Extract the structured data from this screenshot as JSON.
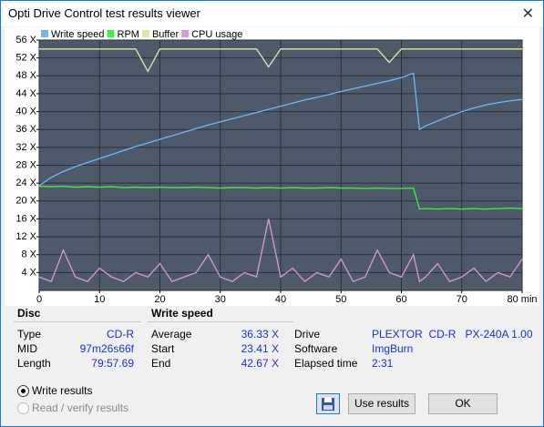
{
  "window": {
    "title": "Opti Drive Control test results viewer"
  },
  "chart_data": {
    "type": "line",
    "x": [
      0,
      2,
      4,
      6,
      8,
      10,
      12,
      14,
      16,
      18,
      20,
      22,
      24,
      26,
      28,
      30,
      32,
      34,
      36,
      38,
      40,
      42,
      44,
      46,
      48,
      50,
      52,
      54,
      56,
      58,
      60,
      62,
      63,
      64,
      66,
      68,
      70,
      72,
      74,
      76,
      78,
      80
    ],
    "series": [
      {
        "name": "Write speed",
        "color": "#6fb8f2",
        "values": [
          23.4,
          25.3,
          26.6,
          27.7,
          28.6,
          29.5,
          30.4,
          31.3,
          32.2,
          33,
          33.8,
          34.6,
          35.4,
          36.2,
          37,
          37.7,
          38.4,
          39.1,
          39.8,
          40.5,
          41.2,
          41.9,
          42.6,
          43.2,
          43.8,
          44.5,
          45.1,
          45.7,
          46.3,
          46.9,
          47.6,
          48.6,
          36,
          36.8,
          37.9,
          39,
          40,
          40.8,
          41.5,
          42,
          42.4,
          42.7
        ]
      },
      {
        "name": "RPM",
        "color": "#40f040",
        "values": [
          23.3,
          23.2,
          23.3,
          23.1,
          23.2,
          23.1,
          23.2,
          23,
          23.1,
          23,
          23.1,
          23,
          23,
          23.1,
          23,
          22.9,
          23,
          23,
          22.9,
          23,
          22.9,
          23,
          22.9,
          22.9,
          23,
          22.9,
          22.9,
          22.8,
          22.9,
          22.8,
          22.8,
          22.9,
          18.2,
          18.3,
          18.2,
          18.3,
          18.2,
          18.3,
          18.2,
          18.3,
          18.4,
          18.3
        ]
      },
      {
        "name": "Buffer",
        "color": "#e4e4a8",
        "values": [
          54,
          54,
          54,
          54,
          54,
          54,
          54,
          54,
          54,
          49,
          54,
          54,
          54,
          54,
          54,
          54,
          54,
          54,
          54,
          50,
          54,
          54,
          54,
          54,
          54,
          54,
          54,
          54,
          54,
          51,
          54,
          54,
          54,
          54,
          54,
          54,
          54,
          54,
          54,
          54,
          54,
          54
        ]
      },
      {
        "name": "CPU usage",
        "color": "#d79ad7",
        "values": [
          3,
          2,
          9,
          3,
          2,
          5,
          3,
          2,
          4,
          3,
          6,
          2,
          3,
          4,
          8,
          3,
          2,
          4,
          3,
          16,
          3,
          5,
          2,
          4,
          3,
          7,
          2,
          3,
          9,
          4,
          3,
          8,
          2,
          3,
          6,
          2,
          3,
          5,
          2,
          4,
          3,
          7
        ]
      }
    ],
    "xlim": [
      0,
      80
    ],
    "xticks": [
      0,
      10,
      20,
      30,
      40,
      50,
      60,
      70,
      {
        "value": 80,
        "label": "80 min"
      }
    ],
    "ylim": [
      0,
      56
    ],
    "yticks": [
      {
        "value": 4,
        "label": "4 X"
      },
      {
        "value": 8,
        "label": "8 X"
      },
      {
        "value": 12,
        "label": "12 X"
      },
      {
        "value": 16,
        "label": "16 X"
      },
      {
        "value": 20,
        "label": "20 X"
      },
      {
        "value": 24,
        "label": "24 X"
      },
      {
        "value": 28,
        "label": "28 X"
      },
      {
        "value": 32,
        "label": "32 X"
      },
      {
        "value": 36,
        "label": "36 X"
      },
      {
        "value": 40,
        "label": "40 X"
      },
      {
        "value": 44,
        "label": "44 X"
      },
      {
        "value": 48,
        "label": "48 X"
      },
      {
        "value": 52,
        "label": "52 X"
      },
      {
        "value": 56,
        "label": "56 X"
      }
    ],
    "grid": true,
    "legend": "top-left"
  },
  "info": {
    "disc": {
      "title": "Disc",
      "rows": [
        {
          "label": "Type",
          "value": "CD-R"
        },
        {
          "label": "MID",
          "value": "97m26s66f"
        },
        {
          "label": "Length",
          "value": "79:57.69"
        }
      ]
    },
    "speed": {
      "title": "Write speed",
      "rows": [
        {
          "label": "Average",
          "value": "36.33 X"
        },
        {
          "label": "Start",
          "value": "23.41 X"
        },
        {
          "label": "End",
          "value": "42.67 X"
        }
      ]
    },
    "drive": {
      "rows": [
        {
          "label": "Drive",
          "value": "PLEXTOR  CD-R   PX-240A 1.00"
        },
        {
          "label": "Software",
          "value": "ImgBurn"
        },
        {
          "label": "Elapsed time",
          "value": "2:31"
        }
      ]
    }
  },
  "options": {
    "write": "Write results",
    "read": "Read / verify results",
    "selected": "write"
  },
  "buttons": {
    "use": "Use results",
    "ok": "OK"
  }
}
